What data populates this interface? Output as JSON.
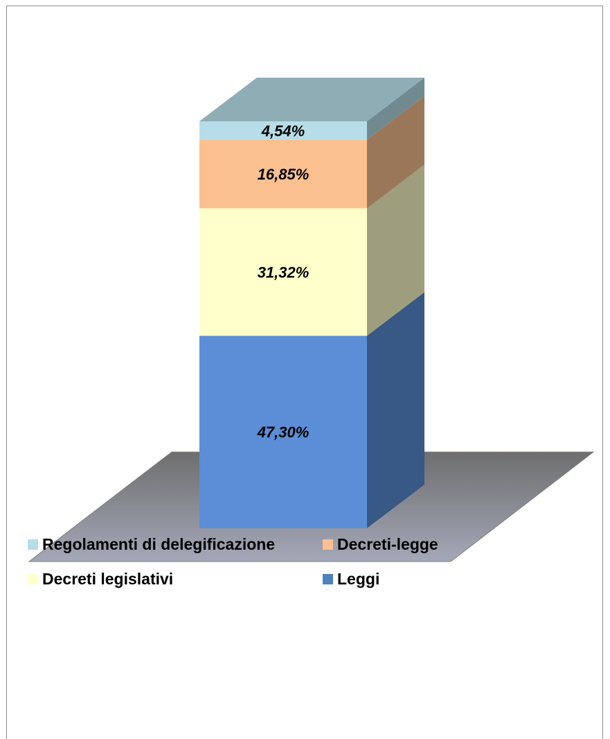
{
  "chart_data": {
    "type": "bar",
    "stacked": true,
    "three_d": true,
    "categories": [
      ""
    ],
    "series": [
      {
        "name": "Leggi",
        "values": [
          47.3
        ],
        "label": "47,30%",
        "color": "#5b8ed6"
      },
      {
        "name": "Decreti legislativi",
        "values": [
          31.32
        ],
        "label": "31,32%",
        "color": "#ffffcc"
      },
      {
        "name": "Decreti-legge",
        "values": [
          16.85
        ],
        "label": "16,85%",
        "color": "#fac090"
      },
      {
        "name": "Regolamenti di delegificazione",
        "values": [
          4.54
        ],
        "label": "4,54%",
        "color": "#b7dee8"
      }
    ],
    "title": "",
    "xlabel": "",
    "ylabel": "",
    "ylim": [
      0,
      100
    ],
    "grid": false,
    "legend_position": "bottom"
  },
  "legend": {
    "row1": [
      {
        "label": "Regolamenti di delegificazione",
        "color": "#b7dee8"
      },
      {
        "label": "Decreti-legge",
        "color": "#fac090"
      }
    ],
    "row2": [
      {
        "label": "Decreti legislativi",
        "color": "#ffffcc"
      },
      {
        "label": "Leggi",
        "color": "#4f81bd"
      }
    ]
  }
}
